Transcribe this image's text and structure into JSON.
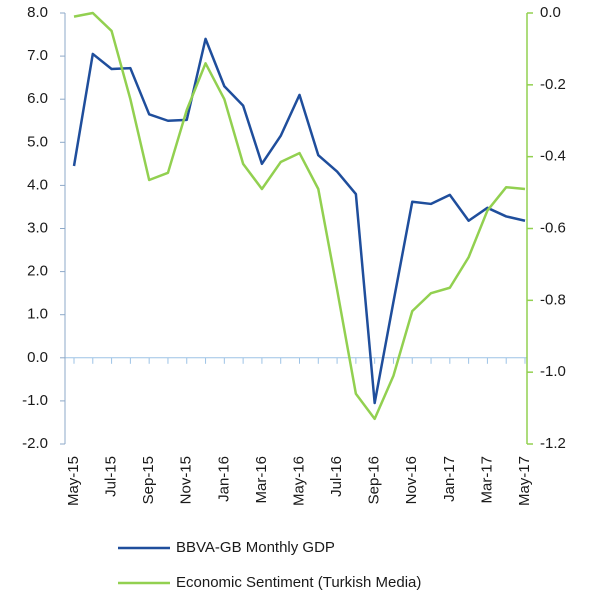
{
  "chart_data": {
    "type": "line",
    "categories": [
      "May-15",
      null,
      "Jul-15",
      null,
      "Sep-15",
      null,
      "Nov-15",
      null,
      "Jan-16",
      null,
      "Mar-16",
      null,
      "May-16",
      null,
      "Jul-16",
      null,
      "Sep-16",
      null,
      "Nov-16",
      null,
      "Jan-17",
      null,
      "Mar-17",
      null,
      "May-17"
    ],
    "series": [
      {
        "name": "BBVA-GB Monthly GDP",
        "color": "#1f4e9c",
        "axis": "y",
        "values": [
          4.45,
          7.05,
          6.7,
          6.72,
          5.65,
          5.5,
          5.52,
          7.4,
          6.3,
          5.85,
          4.5,
          5.15,
          6.1,
          4.7,
          4.32,
          3.8,
          -1.05,
          1.3,
          3.62,
          3.57,
          3.78,
          3.18,
          3.48,
          3.28,
          3.18
        ]
      },
      {
        "name": "Economic Sentiment (Turkish Media)",
        "color": "#92d050",
        "axis": "y2",
        "values": [
          -0.01,
          0.0,
          -0.05,
          -0.24,
          -0.465,
          -0.445,
          -0.27,
          -0.14,
          -0.24,
          -0.42,
          -0.49,
          -0.415,
          -0.39,
          -0.49,
          -0.77,
          -1.06,
          -1.13,
          -1.01,
          -0.83,
          -0.78,
          -0.765,
          -0.68,
          -0.55,
          -0.485,
          -0.49
        ]
      }
    ],
    "ylim": [
      -2,
      8
    ],
    "yticks": [
      {
        "value": -2,
        "label": "-2.0"
      },
      {
        "value": -1,
        "label": "-1.0"
      },
      {
        "value": 0,
        "label": "0.0"
      },
      {
        "value": 1,
        "label": "1.0"
      },
      {
        "value": 2,
        "label": "2.0"
      },
      {
        "value": 3,
        "label": "3.0"
      },
      {
        "value": 4,
        "label": "4.0"
      },
      {
        "value": 5,
        "label": "5.0"
      },
      {
        "value": 6,
        "label": "6.0"
      },
      {
        "value": 7,
        "label": "7.0"
      },
      {
        "value": 8,
        "label": "8.0"
      }
    ],
    "y2lim": [
      -1.2,
      0
    ],
    "y2ticks": [
      -1.2,
      {
        "value": -1,
        "label": "-1.0"
      },
      -0.8,
      -0.6,
      -0.4,
      -0.2,
      {
        "value": 0,
        "label": "0.0"
      }
    ],
    "left_axis_color": "#8ea9c8",
    "right_axis_color": "#92d050",
    "zero_line_color": "#9dc3e6"
  }
}
